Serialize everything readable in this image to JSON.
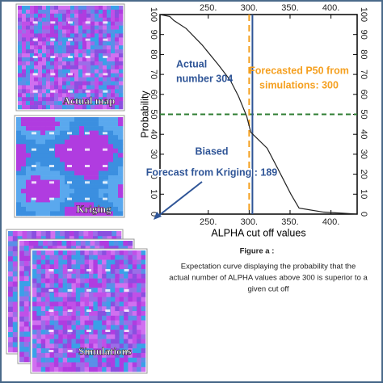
{
  "chart_data": {
    "type": "line",
    "x_label": "ALPHA cut off values",
    "y_label": "Probability",
    "x": [
      191,
      203,
      208,
      223,
      242,
      262,
      277,
      287,
      297,
      302,
      322,
      336,
      351,
      361,
      391,
      432
    ],
    "series": [
      {
        "color": "#222222",
        "values": [
          100,
          99,
          97,
          93,
          85,
          75,
          67,
          59,
          49,
          41,
          33,
          22,
          10,
          3,
          1,
          0
        ]
      }
    ],
    "xlim": [
      191,
      432
    ],
    "ylim": [
      0,
      100
    ],
    "xticks": [
      {
        "value": 250,
        "label": "250."
      },
      {
        "value": 300,
        "label": "300."
      },
      {
        "value": 350,
        "label": "350."
      },
      {
        "value": 400,
        "label": "400."
      }
    ],
    "yticks": [
      0,
      10,
      20,
      30,
      40,
      50,
      60,
      70,
      80,
      90,
      100
    ],
    "vlines": [
      {
        "value": 300,
        "color": "#f5a020"
      },
      {
        "value": 304,
        "color": "#2f5597"
      }
    ],
    "hlines": [
      {
        "value": 50,
        "color": "#2e7d32"
      }
    ],
    "annotations": [
      {
        "lines": [
          "Actual",
          "number 304"
        ],
        "color": "#2f5597"
      },
      {
        "lines": [
          "Forecasted P50 from",
          "simulations:  300"
        ],
        "color": "#f5a020"
      },
      {
        "lines": [
          "Biased",
          "Forecast from Kriging : 189"
        ],
        "color": "#2f5597"
      }
    ]
  },
  "panels": [
    "Actual map",
    "Kriging",
    "Simulations"
  ],
  "caption": {
    "title": "Figure a :",
    "lines": [
      "Expectation curve  displaying the probability that the",
      "actual number  of ALPHA values above 300 is superior to a",
      "given cut off"
    ]
  }
}
